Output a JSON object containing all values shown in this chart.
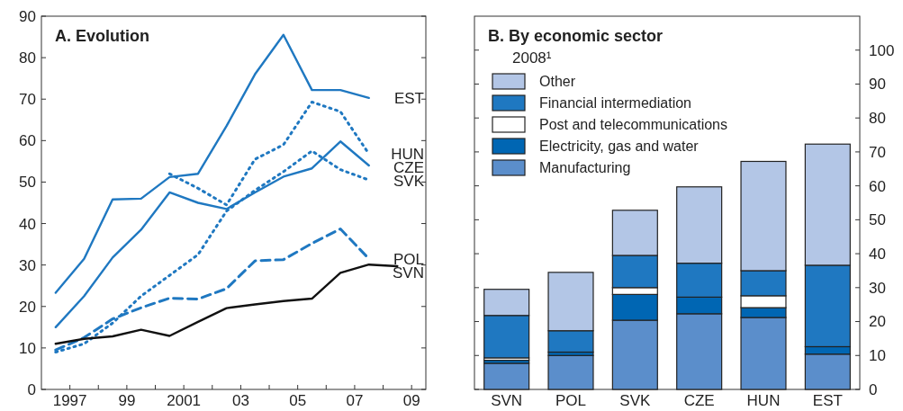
{
  "chart_data": [
    {
      "type": "line",
      "title": "A. Evolution",
      "xlim": [
        1996,
        2009.5
      ],
      "ylim": [
        0,
        90
      ],
      "xticks": [
        1997,
        {
          "value": 1998,
          "label": null
        },
        {
          "value": 1999,
          "label": "99"
        },
        {
          "value": 2000,
          "label": null
        },
        2001,
        {
          "value": 2002,
          "label": null
        },
        {
          "value": 2003,
          "label": "03"
        },
        {
          "value": 2004,
          "label": null
        },
        {
          "value": 2005,
          "label": "05"
        },
        {
          "value": 2006,
          "label": null
        },
        {
          "value": 2007,
          "label": "07"
        },
        {
          "value": 2008,
          "label": null
        },
        {
          "value": 2009,
          "label": "09"
        }
      ],
      "yticks": [
        0,
        10,
        20,
        30,
        40,
        50,
        60,
        70,
        80,
        90
      ],
      "series": [
        {
          "name": "EST",
          "color": "#1f78c1",
          "line_style": "solid",
          "x": [
            1996.5,
            1997.5,
            1998.5,
            1999.5,
            2000.5,
            2001.5,
            2002.5,
            2003.5,
            2004.5,
            2005.5,
            2006.5,
            2007.5
          ],
          "values": [
            23.3,
            31.5,
            45.8,
            46,
            51.2,
            52,
            63.5,
            76,
            85.5,
            72.2,
            72.2,
            70.3
          ]
        },
        {
          "name": "HUN",
          "color": "#1f78c1",
          "line_style": "dotted",
          "x": [
            2000.5,
            2001.5,
            2002.5,
            2003.5,
            2004.5,
            2005.5,
            2006.5,
            2007.5
          ],
          "values": [
            52,
            48.5,
            44.5,
            55.5,
            59,
            69.3,
            67,
            56.8
          ]
        },
        {
          "name": "CZE",
          "color": "#1f78c1",
          "line_style": "solid",
          "x": [
            1996.5,
            1997.5,
            1998.5,
            1999.5,
            2000.5,
            2001.5,
            2002.5,
            2003.5,
            2004.5,
            2005.5,
            2006.5,
            2007.5
          ],
          "values": [
            15,
            22.5,
            31.8,
            38.5,
            47.5,
            45,
            43.5,
            47.5,
            51.3,
            53.3,
            59.8,
            54
          ]
        },
        {
          "name": "SVK",
          "color": "#1f78c1",
          "line_style": "dotted",
          "x": [
            1996.5,
            1997.5,
            1998.5,
            1999.5,
            2000.5,
            2001.5,
            2002.5,
            2003.5,
            2004.5,
            2005.5,
            2006.5,
            2007.5
          ],
          "values": [
            9,
            11,
            16,
            22.5,
            27.5,
            32.5,
            43,
            48,
            52.5,
            57.5,
            53,
            50.5
          ]
        },
        {
          "name": "POL",
          "color": "#1f78c1",
          "line_style": "dashed",
          "x": [
            1996.5,
            1997.5,
            1998.5,
            1999.5,
            2000.5,
            2001.5,
            2002.5,
            2003.5,
            2004.5,
            2005.5,
            2006.5,
            2007.5
          ],
          "values": [
            9.5,
            12.5,
            17,
            19.7,
            22,
            21.8,
            24.3,
            31,
            31.3,
            35.2,
            38.7,
            31.5
          ]
        },
        {
          "name": "SVN",
          "color": "#111111",
          "line_style": "solid",
          "x": [
            1996.5,
            1997.5,
            1998.5,
            1999.5,
            2000.5,
            2001.5,
            2002.5,
            2003.5,
            2004.5,
            2005.5,
            2006.5,
            2007.5,
            2008.5
          ],
          "values": [
            11,
            12.2,
            12.8,
            14.4,
            12.9,
            16.3,
            19.6,
            20.5,
            21.3,
            21.9,
            28.1,
            30.1,
            29.7
          ]
        }
      ]
    },
    {
      "type": "bar",
      "title": "B. By economic sector",
      "subtitle": "2008¹",
      "stacked": true,
      "ylim": [
        0,
        110
      ],
      "yticks": [
        0,
        10,
        20,
        30,
        40,
        50,
        60,
        70,
        80,
        90,
        100
      ],
      "legend": "top left",
      "categories": [
        "SVN",
        "POL",
        "SVK",
        "CZE",
        "HUN",
        "EST"
      ],
      "series": [
        {
          "name": "Manufacturing",
          "color": "#5b8ecb",
          "values": [
            7.7,
            10,
            20.4,
            22.3,
            21.2,
            10.4
          ]
        },
        {
          "name": "Electricity, gas and water",
          "color": "#0066b3",
          "values": [
            0.9,
            1,
            7.6,
            4.9,
            2.9,
            2.2
          ]
        },
        {
          "name": "Post and telecommunications",
          "color": "#ffffff",
          "values": [
            0.7,
            0,
            2,
            0,
            3.5,
            0
          ]
        },
        {
          "name": "Financial intermediation",
          "color": "#1f78c1",
          "values": [
            12.5,
            6.3,
            9.5,
            10,
            7.4,
            24
          ]
        },
        {
          "name": "Other",
          "color": "#b3c6e6",
          "values": [
            7.7,
            17.2,
            13.3,
            22.5,
            32.2,
            35.7
          ]
        }
      ]
    }
  ]
}
